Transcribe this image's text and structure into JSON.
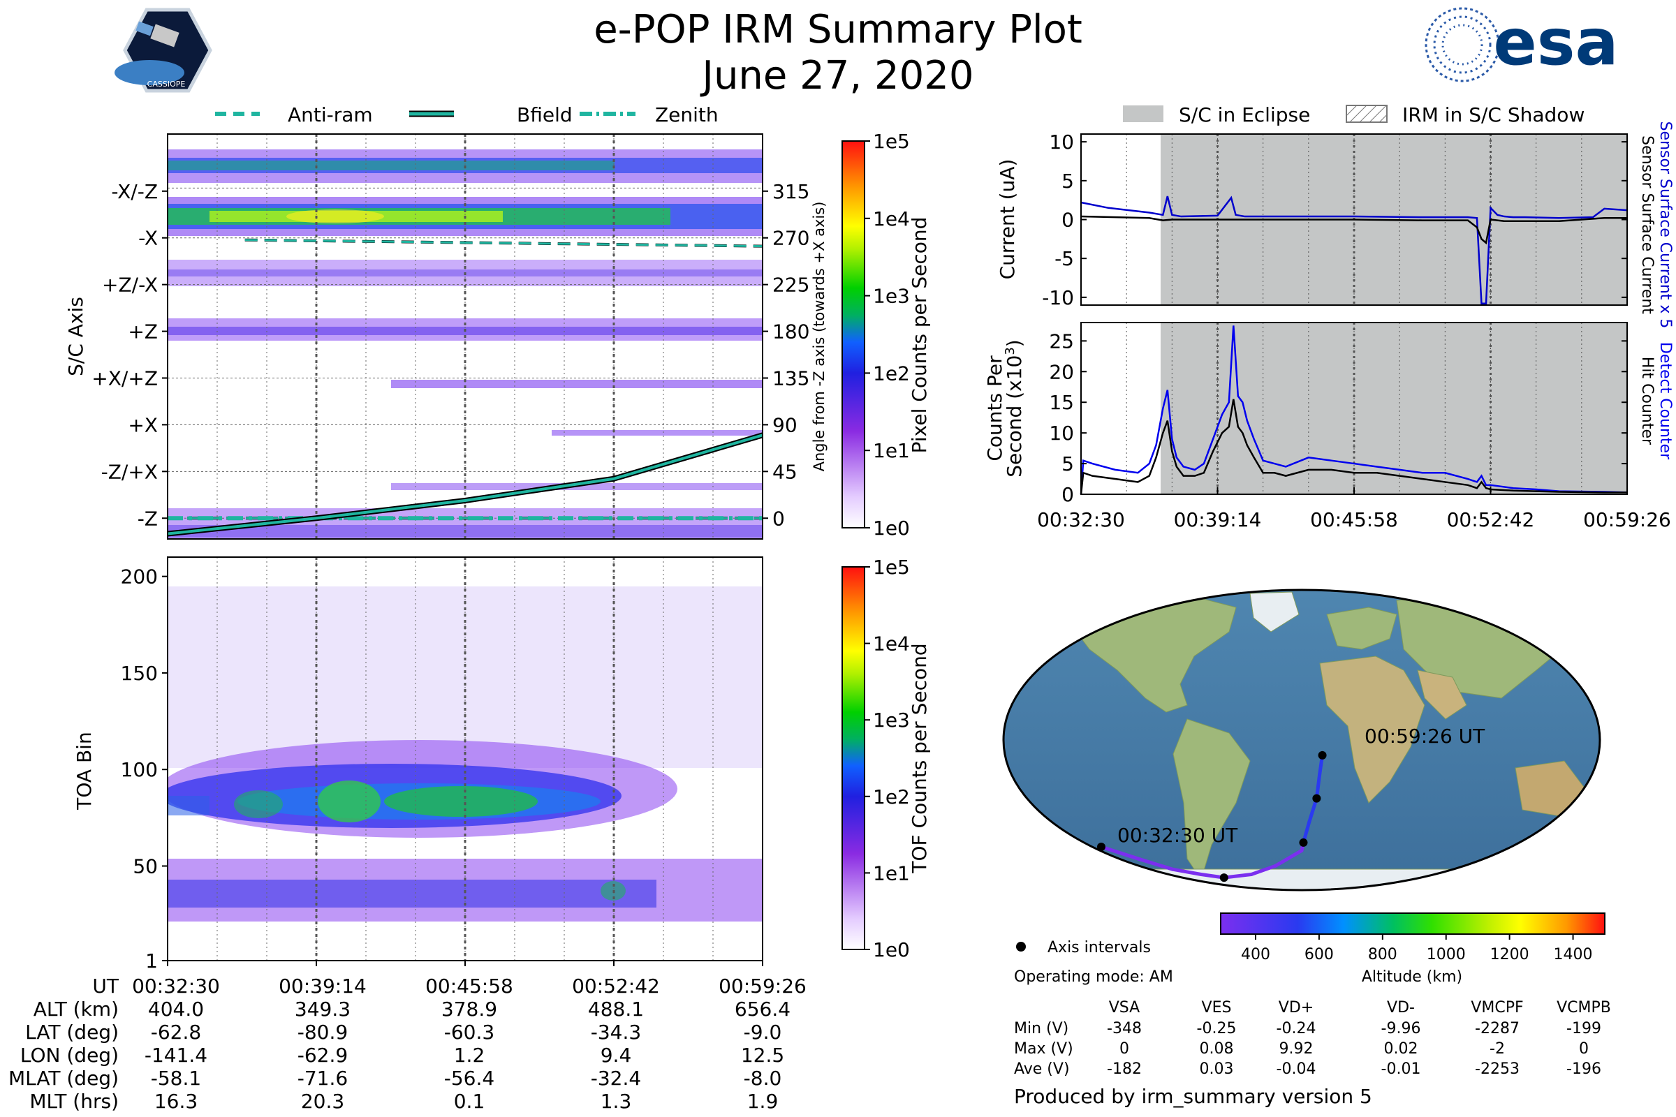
{
  "header": {
    "title": "e-POP IRM Summary Plot",
    "date": "June 27, 2020",
    "mission_logo_text": "CASSIOPE",
    "agency_logo_text": "esa"
  },
  "colors": {
    "anti_ram": "#1fb5a0",
    "bfield": "#1fb5a0",
    "zenith": "#1fb5a0",
    "surface_current": "#0000cc",
    "detect_counter": "#0000ee",
    "eclipse": "#c4c6c6",
    "orbit_low": "#7b2fef",
    "orbit_high": "#2a3af0"
  },
  "legend_top_left": [
    {
      "label": "Anti-ram",
      "style": "dashed"
    },
    {
      "label": "Bfield",
      "style": "solid"
    },
    {
      "label": "Zenith",
      "style": "dashdot"
    }
  ],
  "legend_top_right": [
    {
      "label": "S/C in Eclipse",
      "style": "filled"
    },
    {
      "label": "IRM in S/C Shadow",
      "style": "hatched"
    }
  ],
  "time_ticks": [
    "00:32:30",
    "00:39:14",
    "00:45:58",
    "00:52:42",
    "00:59:26"
  ],
  "info_table": {
    "rows": [
      {
        "label": "UT",
        "values": [
          "00:32:30",
          "00:39:14",
          "00:45:58",
          "00:52:42",
          "00:59:26"
        ]
      },
      {
        "label": "ALT (km)",
        "values": [
          "404.0",
          "349.3",
          "378.9",
          "488.1",
          "656.4"
        ]
      },
      {
        "label": "LAT (deg)",
        "values": [
          "-62.8",
          "-80.9",
          "-60.3",
          "-34.3",
          "-9.0"
        ]
      },
      {
        "label": "LON (deg)",
        "values": [
          "-141.4",
          "-62.9",
          "1.2",
          "9.4",
          "12.5"
        ]
      },
      {
        "label": "MLAT (deg)",
        "values": [
          "-58.1",
          "-71.6",
          "-56.4",
          "-32.4",
          "-8.0"
        ]
      },
      {
        "label": "MLT (hrs)",
        "values": [
          "16.3",
          "20.3",
          "0.1",
          "1.3",
          "1.9"
        ]
      }
    ]
  },
  "colorbar_ticks": [
    "1e5",
    "1e4",
    "1e3",
    "1e2",
    "1e1",
    "1e0"
  ],
  "chart_data": [
    {
      "type": "heatmap",
      "name": "pixel_spectrogram",
      "ylabel": "S/C Axis",
      "y_tick_labels": [
        "-X/-Z",
        "-X",
        "+Z/-X",
        "+Z",
        "+X/+Z",
        "+X",
        "-Z/+X",
        "-Z"
      ],
      "y2label": "Angle from -Z axis (towards +X axis)",
      "y2_ticks": [
        315,
        270,
        225,
        180,
        135,
        90,
        45,
        0
      ],
      "ylim": [
        -20,
        370
      ],
      "colorbar_label": "Pixel Counts per Second",
      "lines": [
        {
          "name": "Anti-ram",
          "x": [
            "00:32:30",
            "00:59:26"
          ],
          "y": [
            0,
            0
          ]
        },
        {
          "name": "Zenith",
          "x": [
            "00:32:30",
            "00:59:26"
          ],
          "y": [
            0,
            0
          ]
        },
        {
          "name": "Anti-ram (upper)",
          "x": [
            "00:36:00",
            "00:59:26"
          ],
          "y": [
            268,
            262
          ]
        },
        {
          "name": "Bfield",
          "x": [
            "00:32:30",
            "00:39:14",
            "00:45:58",
            "00:52:42",
            "00:59:26"
          ],
          "y": [
            -15,
            0,
            17,
            38,
            80
          ]
        }
      ]
    },
    {
      "type": "heatmap",
      "name": "tof_spectrogram",
      "ylabel": "TOA Bin",
      "y_ticks": [
        1,
        50,
        100,
        150,
        200
      ],
      "ylim": [
        1,
        210
      ],
      "colorbar_label": "TOF Counts per Second"
    },
    {
      "type": "line",
      "name": "current",
      "ylabel": "Current (uA)",
      "y_ticks": [
        10,
        5,
        0,
        -5,
        -10
      ],
      "ylim": [
        -11,
        11
      ],
      "right_label_1": "Sensor Surface Current x 5",
      "right_label_2": "Sensor Surface Current",
      "series": [
        {
          "name": "Sensor Surface Current x 5",
          "x": [
            0,
            120,
            300,
            360,
            380,
            400,
            420,
            440,
            600,
            660,
            680,
            700,
            720,
            900,
            1200,
            1500,
            1700,
            1740,
            1760,
            1780,
            1800,
            1830,
            1860,
            1900,
            1950,
            2100,
            2250,
            2300,
            2400
          ],
          "y": [
            2.2,
            1.5,
            0.9,
            0.6,
            3.0,
            0.6,
            0.5,
            0.4,
            0.5,
            2.8,
            0.6,
            0.5,
            0.4,
            0.4,
            0.4,
            0.3,
            0.3,
            0.2,
            -10.8,
            -10.8,
            1.5,
            0.6,
            0.4,
            0.3,
            0.3,
            0.2,
            0.3,
            1.4,
            1.2
          ]
        },
        {
          "name": "Sensor Surface Current",
          "x": [
            0,
            300,
            360,
            400,
            600,
            900,
            1200,
            1500,
            1700,
            1740,
            1760,
            1780,
            1800,
            1860,
            2100,
            2300,
            2400
          ],
          "y": [
            0.4,
            0.2,
            -0.1,
            0.0,
            0.0,
            0.0,
            0.0,
            -0.1,
            -0.1,
            -1.0,
            -2.5,
            -3.0,
            0.0,
            -0.2,
            -0.2,
            0.2,
            0.2
          ]
        }
      ]
    },
    {
      "type": "line",
      "name": "counts",
      "ylabel": "Counts Per Second (x10^3)",
      "y_ticks": [
        0,
        5,
        10,
        15,
        20,
        25
      ],
      "ylim": [
        0,
        28
      ],
      "right_label_1": "Detect Counter",
      "right_label_2": "Hit Counter",
      "series": [
        {
          "name": "Detect Counter",
          "x": [
            0,
            10,
            50,
            150,
            250,
            300,
            330,
            360,
            380,
            400,
            420,
            450,
            500,
            540,
            580,
            620,
            650,
            670,
            690,
            710,
            730,
            760,
            800,
            850,
            900,
            1000,
            1100,
            1200,
            1300,
            1400,
            1500,
            1600,
            1700,
            1740,
            1760,
            1780,
            1800,
            1900,
            2000,
            2100,
            2300,
            2400
          ],
          "y": [
            0,
            5.5,
            5.0,
            4.0,
            3.5,
            5.0,
            8.0,
            14.0,
            17.0,
            9.0,
            6.0,
            4.5,
            4.0,
            5.0,
            9.0,
            13.0,
            15.0,
            27.5,
            16.0,
            15.0,
            12.0,
            9.0,
            5.5,
            5.0,
            4.5,
            6.0,
            5.5,
            5.0,
            4.5,
            4.0,
            3.5,
            3.5,
            2.5,
            2.0,
            3.0,
            1.5,
            1.5,
            1.0,
            0.8,
            0.5,
            0.4,
            0.3
          ]
        },
        {
          "name": "Hit Counter",
          "x": [
            0,
            10,
            50,
            150,
            250,
            300,
            330,
            360,
            380,
            400,
            420,
            450,
            500,
            540,
            580,
            620,
            650,
            670,
            690,
            710,
            730,
            760,
            800,
            850,
            900,
            1000,
            1100,
            1200,
            1300,
            1400,
            1500,
            1600,
            1700,
            1740,
            1760,
            1780,
            1800,
            1900,
            2000,
            2100,
            2300,
            2400
          ],
          "y": [
            0,
            3.5,
            3.0,
            2.5,
            2.0,
            3.0,
            6.0,
            10.0,
            12.0,
            7.0,
            4.5,
            3.0,
            3.0,
            3.5,
            7.0,
            10.0,
            11.0,
            15.5,
            11.0,
            10.0,
            8.0,
            6.0,
            3.5,
            3.5,
            3.0,
            4.0,
            4.0,
            3.5,
            3.5,
            3.0,
            2.5,
            2.0,
            1.5,
            1.0,
            2.0,
            1.0,
            0.8,
            0.6,
            0.5,
            0.4,
            0.3,
            0.3
          ]
        }
      ]
    },
    {
      "type": "scatter",
      "name": "orbit_map",
      "colorbar_label": "Altitude (km)",
      "colorbar_ticks": [
        400,
        600,
        800,
        1000,
        1200,
        1400
      ],
      "start_label": "00:32:30 UT",
      "end_label": "00:59:26 UT",
      "track": {
        "lon": [
          -141.4,
          -120,
          -100,
          -80,
          -62.9,
          -40,
          -20,
          0,
          1.2,
          5,
          9.4,
          11,
          12.5
        ],
        "lat": [
          -62.8,
          -70,
          -76,
          -79,
          -80.9,
          -79,
          -74,
          -65,
          -60.3,
          -48,
          -34.3,
          -20,
          -9.0
        ]
      },
      "axis_intervals": {
        "lon": [
          -141.4,
          -62.9,
          1.2,
          9.4,
          12.5
        ],
        "lat": [
          -62.8,
          -80.9,
          -60.3,
          -34.3,
          -9.0
        ]
      },
      "legend_label": "Axis intervals",
      "operating_mode": "Operating mode: AM"
    },
    {
      "type": "table",
      "name": "voltages",
      "columns": [
        "VSA",
        "VES",
        "VD+",
        "VD-",
        "VMCPF",
        "VCMPB"
      ],
      "rows": [
        {
          "label": "Min (V)",
          "values": [
            "-348",
            "-0.25",
            "-0.24",
            "-9.96",
            "-2287",
            "-199"
          ]
        },
        {
          "label": "Max (V)",
          "values": [
            "0",
            "0.08",
            "9.92",
            "0.02",
            "-2",
            "0"
          ]
        },
        {
          "label": "Ave (V)",
          "values": [
            "-182",
            "0.03",
            "-0.04",
            "-0.01",
            "-2253",
            "-196"
          ]
        }
      ]
    }
  ],
  "footer": "Produced by irm_summary version 5"
}
